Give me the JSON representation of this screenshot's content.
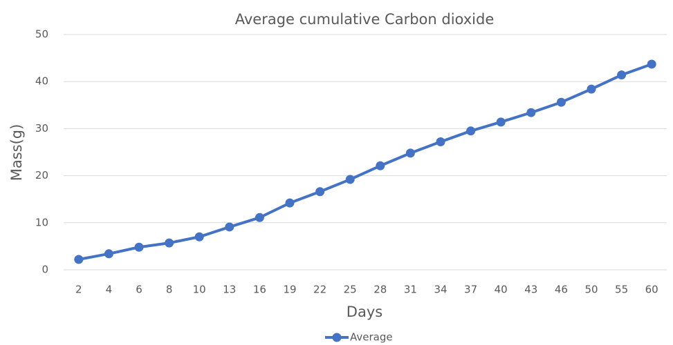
{
  "chart_data": {
    "type": "line",
    "title": "Average cumulative Carbon dioxide",
    "x_label": "Days",
    "y_label": "Mass(g)",
    "categories": [
      "2",
      "4",
      "6",
      "8",
      "10",
      "13",
      "16",
      "19",
      "22",
      "25",
      "28",
      "31",
      "34",
      "37",
      "40",
      "43",
      "46",
      "50",
      "55",
      "60"
    ],
    "series": [
      {
        "name": "Average",
        "color": "#4472c4",
        "values": [
          2.2,
          3.4,
          4.8,
          5.7,
          7.0,
          9.1,
          11.1,
          14.2,
          16.6,
          19.2,
          22.1,
          24.8,
          27.2,
          29.5,
          31.4,
          33.4,
          35.6,
          38.4,
          41.4,
          43.7
        ]
      }
    ],
    "ylim": [
      0,
      50
    ],
    "yticks": [
      0,
      10,
      20,
      30,
      40,
      50
    ],
    "grid": true,
    "legend": "bottom"
  }
}
